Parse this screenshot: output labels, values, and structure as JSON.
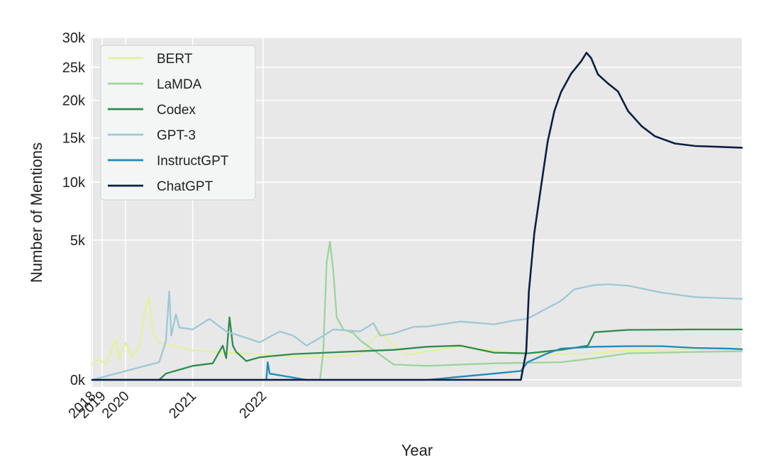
{
  "chart_data": {
    "type": "line",
    "xlabel": "Year",
    "ylabel": "Number of Mentions",
    "x_ticks": [
      {
        "label": "2018",
        "t": 0
      },
      {
        "label": "2019",
        "t": 15
      },
      {
        "label": "2020",
        "t": 50
      },
      {
        "label": "2021",
        "t": 150
      },
      {
        "label": "2022",
        "t": 255
      }
    ],
    "x_range": [
      0,
      970
    ],
    "y_ticks": [
      {
        "label": "0k",
        "value": 0
      },
      {
        "label": "5k",
        "value": 5000
      },
      {
        "label": "10k",
        "value": 10000
      },
      {
        "label": "15k",
        "value": 15000
      },
      {
        "label": "20k",
        "value": 20000
      },
      {
        "label": "25k",
        "value": 25000
      },
      {
        "label": "30k",
        "value": 30000
      }
    ],
    "y_scale": "sqrt",
    "ylim": [
      0,
      30000
    ],
    "grid": true,
    "legend_position": "top-left",
    "series": [
      {
        "name": "BERT",
        "color": "#e4f19c",
        "points": [
          [
            0,
            60
          ],
          [
            10,
            110
          ],
          [
            20,
            60
          ],
          [
            28,
            200
          ],
          [
            35,
            420
          ],
          [
            40,
            100
          ],
          [
            50,
            350
          ],
          [
            60,
            130
          ],
          [
            70,
            280
          ],
          [
            80,
            1350
          ],
          [
            85,
            1750
          ],
          [
            90,
            580
          ],
          [
            100,
            350
          ],
          [
            120,
            300
          ],
          [
            150,
            220
          ],
          [
            200,
            190
          ],
          [
            250,
            170
          ],
          [
            300,
            140
          ],
          [
            350,
            130
          ],
          [
            400,
            160
          ],
          [
            430,
            600
          ],
          [
            450,
            300
          ],
          [
            470,
            160
          ],
          [
            500,
            210
          ],
          [
            550,
            280
          ],
          [
            620,
            200
          ],
          [
            650,
            180
          ],
          [
            700,
            170
          ],
          [
            750,
            180
          ],
          [
            800,
            220
          ],
          [
            850,
            230
          ],
          [
            900,
            240
          ],
          [
            970,
            240
          ]
        ]
      },
      {
        "name": "LaMDA",
        "color": "#9dd49a",
        "points": [
          [
            0,
            0
          ],
          [
            200,
            0
          ],
          [
            340,
            0
          ],
          [
            345,
            200
          ],
          [
            350,
            3500
          ],
          [
            355,
            4900
          ],
          [
            360,
            3000
          ],
          [
            365,
            1000
          ],
          [
            375,
            650
          ],
          [
            390,
            560
          ],
          [
            400,
            400
          ],
          [
            450,
            60
          ],
          [
            500,
            50
          ],
          [
            600,
            70
          ],
          [
            700,
            80
          ],
          [
            750,
            120
          ],
          [
            800,
            180
          ],
          [
            850,
            190
          ],
          [
            900,
            200
          ],
          [
            970,
            210
          ]
        ]
      },
      {
        "name": "Codex",
        "color": "#2e8b4e",
        "points": [
          [
            0,
            0
          ],
          [
            100,
            0
          ],
          [
            110,
            10
          ],
          [
            150,
            50
          ],
          [
            180,
            70
          ],
          [
            195,
            300
          ],
          [
            200,
            120
          ],
          [
            205,
            1000
          ],
          [
            210,
            300
          ],
          [
            215,
            200
          ],
          [
            230,
            90
          ],
          [
            250,
            130
          ],
          [
            300,
            170
          ],
          [
            350,
            190
          ],
          [
            400,
            210
          ],
          [
            450,
            230
          ],
          [
            500,
            280
          ],
          [
            550,
            300
          ],
          [
            600,
            190
          ],
          [
            650,
            180
          ],
          [
            700,
            230
          ],
          [
            740,
            300
          ],
          [
            750,
            580
          ],
          [
            800,
            640
          ],
          [
            900,
            650
          ],
          [
            970,
            650
          ]
        ]
      },
      {
        "name": "GPT-3",
        "color": "#9ec8d6",
        "points": [
          [
            0,
            0
          ],
          [
            100,
            80
          ],
          [
            110,
            380
          ],
          [
            115,
            2000
          ],
          [
            118,
            500
          ],
          [
            125,
            1100
          ],
          [
            130,
            700
          ],
          [
            150,
            650
          ],
          [
            175,
            950
          ],
          [
            200,
            600
          ],
          [
            230,
            450
          ],
          [
            250,
            360
          ],
          [
            280,
            600
          ],
          [
            300,
            500
          ],
          [
            320,
            300
          ],
          [
            340,
            450
          ],
          [
            360,
            650
          ],
          [
            400,
            600
          ],
          [
            420,
            820
          ],
          [
            430,
            500
          ],
          [
            450,
            550
          ],
          [
            480,
            720
          ],
          [
            500,
            730
          ],
          [
            550,
            870
          ],
          [
            600,
            790
          ],
          [
            630,
            900
          ],
          [
            650,
            960
          ],
          [
            700,
            1600
          ],
          [
            720,
            2100
          ],
          [
            750,
            2300
          ],
          [
            770,
            2340
          ],
          [
            800,
            2270
          ],
          [
            850,
            1950
          ],
          [
            900,
            1750
          ],
          [
            970,
            1680
          ]
        ]
      },
      {
        "name": "InstructGPT",
        "color": "#1f8ab8",
        "points": [
          [
            0,
            0
          ],
          [
            200,
            0
          ],
          [
            260,
            0
          ],
          [
            262,
            80
          ],
          [
            265,
            10
          ],
          [
            320,
            0
          ],
          [
            400,
            0
          ],
          [
            450,
            0
          ],
          [
            500,
            0
          ],
          [
            600,
            10
          ],
          [
            640,
            20
          ],
          [
            650,
            80
          ],
          [
            680,
            180
          ],
          [
            700,
            250
          ],
          [
            750,
            280
          ],
          [
            800,
            290
          ],
          [
            850,
            290
          ],
          [
            900,
            260
          ],
          [
            950,
            250
          ],
          [
            970,
            240
          ]
        ]
      },
      {
        "name": "ChatGPT",
        "color": "#0b1f45",
        "points": [
          [
            0,
            0
          ],
          [
            100,
            0
          ],
          [
            200,
            0
          ],
          [
            300,
            0
          ],
          [
            400,
            0
          ],
          [
            500,
            0
          ],
          [
            600,
            0
          ],
          [
            640,
            0
          ],
          [
            648,
            200
          ],
          [
            652,
            2000
          ],
          [
            660,
            5500
          ],
          [
            670,
            9500
          ],
          [
            680,
            14500
          ],
          [
            690,
            18500
          ],
          [
            700,
            21200
          ],
          [
            715,
            24000
          ],
          [
            730,
            26000
          ],
          [
            738,
            27400
          ],
          [
            745,
            26500
          ],
          [
            755,
            23900
          ],
          [
            770,
            22500
          ],
          [
            785,
            21300
          ],
          [
            800,
            18500
          ],
          [
            820,
            16500
          ],
          [
            840,
            15200
          ],
          [
            870,
            14300
          ],
          [
            900,
            14000
          ],
          [
            970,
            13800
          ]
        ]
      }
    ]
  }
}
